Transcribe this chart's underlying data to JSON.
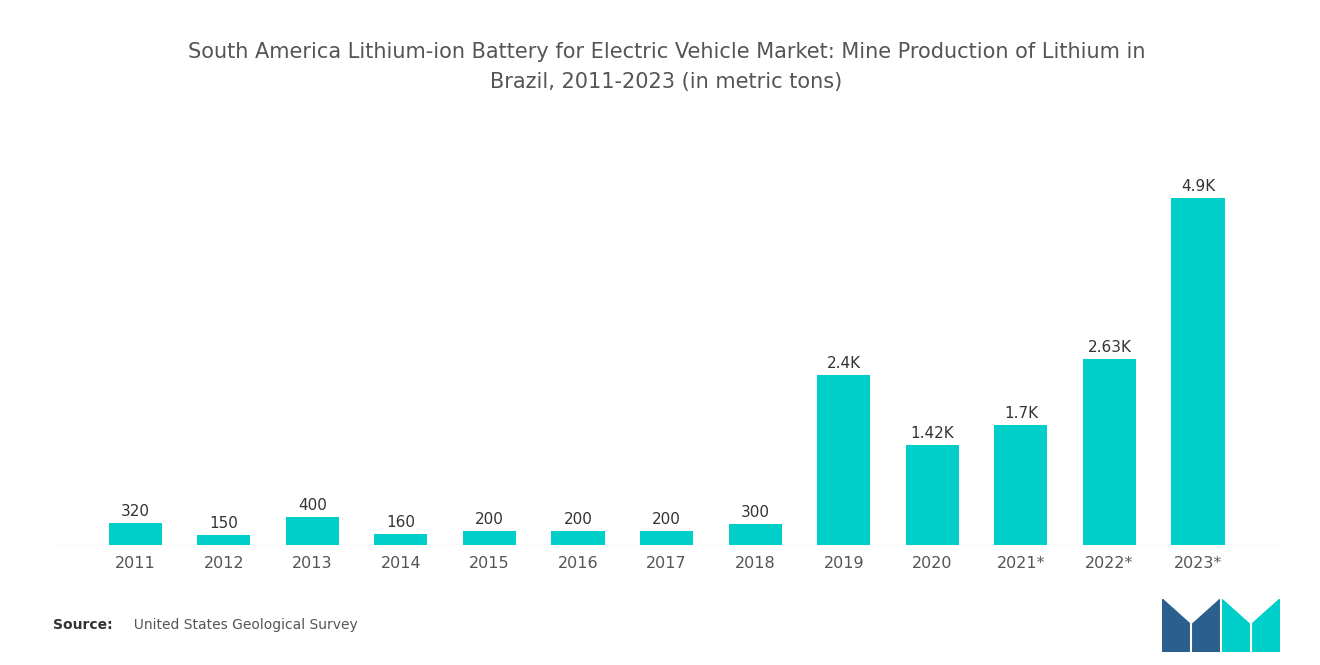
{
  "title": "South America Lithium-ion Battery for Electric Vehicle Market: Mine Production of Lithium in\nBrazil, 2011-2023 (in metric tons)",
  "categories": [
    "2011",
    "2012",
    "2013",
    "2014",
    "2015",
    "2016",
    "2017",
    "2018",
    "2019",
    "2020",
    "2021*",
    "2022*",
    "2023*"
  ],
  "values": [
    320,
    150,
    400,
    160,
    200,
    200,
    200,
    300,
    2400,
    1420,
    1700,
    2630,
    4900
  ],
  "labels": [
    "320",
    "150",
    "400",
    "160",
    "200",
    "200",
    "200",
    "300",
    "2.4K",
    "1.42K",
    "1.7K",
    "2.63K",
    "4.9K"
  ],
  "bar_color": "#00CEC9",
  "background_color": "#ffffff",
  "title_fontsize": 15,
  "label_fontsize": 11,
  "tick_fontsize": 11.5,
  "source_bold": "Source:",
  "source_normal": "  United States Geological Survey",
  "ylim": [
    0,
    6000
  ]
}
